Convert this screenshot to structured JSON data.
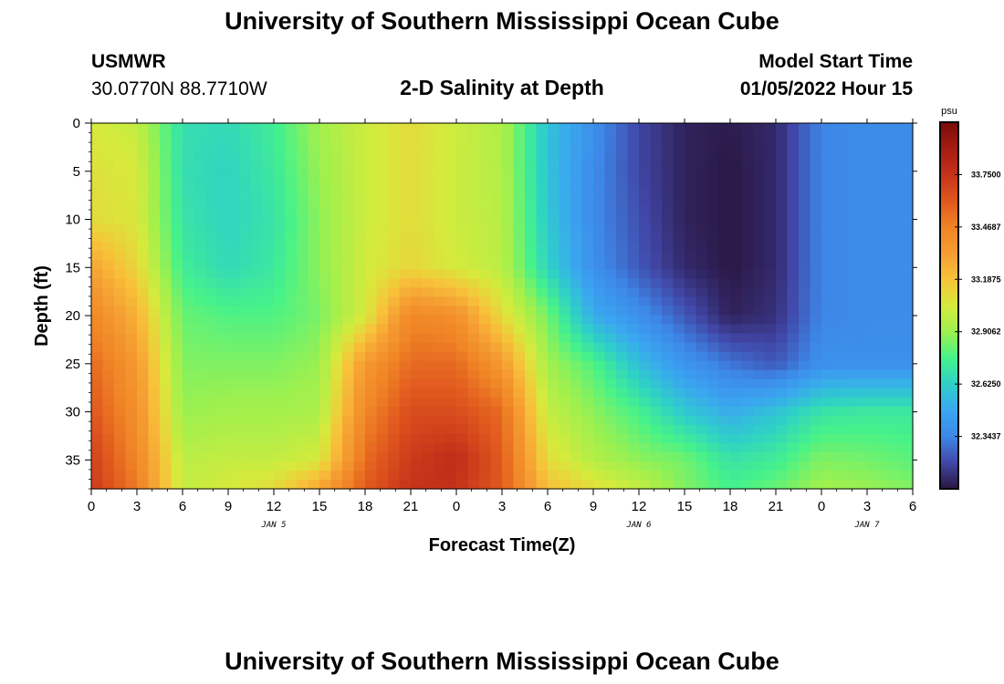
{
  "header": {
    "title": "University of Southern Mississippi Ocean Cube",
    "station": "USMWR",
    "coords": "30.0770N  88.7710W",
    "subtitle": "2-D Salinity at Depth",
    "model_label": "Model Start Time",
    "model_time": "01/05/2022 Hour 15"
  },
  "footer": {
    "title": "University of Southern Mississippi Ocean Cube"
  },
  "chart_data": {
    "type": "heatmap",
    "title": "2-D Salinity at Depth",
    "xlabel": "Forecast Time(Z)",
    "ylabel": "Depth (ft)",
    "x_hours": [
      0,
      3,
      6,
      9,
      12,
      15,
      18,
      21,
      24,
      27,
      30,
      33,
      36,
      39,
      42,
      45,
      48,
      51,
      54
    ],
    "x_tick_labels": [
      "0",
      "3",
      "6",
      "9",
      "12",
      "15",
      "18",
      "21",
      "0",
      "3",
      "6",
      "9",
      "12",
      "15",
      "18",
      "21",
      "0",
      "3",
      "6"
    ],
    "date_labels": [
      {
        "hour": 12,
        "label": "JAN 5"
      },
      {
        "hour": 36,
        "label": "JAN 6"
      },
      {
        "hour": 51,
        "label": "JAN 7"
      }
    ],
    "ylim": [
      0,
      38
    ],
    "y_ticks": [
      0,
      5,
      10,
      15,
      20,
      25,
      30,
      35
    ],
    "colorbar": {
      "unit": "psu",
      "range": [
        32.0625,
        34.0313
      ],
      "ticks": [
        "33.7500",
        "33.4687",
        "33.1875",
        "32.9062",
        "32.6250",
        "32.3437"
      ],
      "colors": [
        "#2a1540",
        "#4147a8",
        "#3d88e8",
        "#3aa7f0",
        "#2ed0c8",
        "#46f28a",
        "#9ef04e",
        "#d6ea3c",
        "#f8c23a",
        "#f59d32",
        "#f08426",
        "#e0571e",
        "#c5321a",
        "#a41c12",
        "#7a0c0c"
      ]
    },
    "z_depths": [
      0,
      5,
      10,
      15,
      20,
      25,
      30,
      35,
      38
    ],
    "z_salinity_psu": [
      [
        33.05,
        33.0,
        32.68,
        32.66,
        32.74,
        32.92,
        33.02,
        33.1,
        33.02,
        32.95,
        32.58,
        32.38,
        32.2,
        32.1,
        32.08,
        32.12,
        32.34,
        32.36,
        32.36
      ],
      [
        33.08,
        33.05,
        32.68,
        32.64,
        32.72,
        32.9,
        33.02,
        33.1,
        33.02,
        32.96,
        32.58,
        32.36,
        32.2,
        32.1,
        32.07,
        32.12,
        32.34,
        32.36,
        32.36
      ],
      [
        33.1,
        33.06,
        32.7,
        32.64,
        32.7,
        32.88,
        33.02,
        33.1,
        33.02,
        32.97,
        32.6,
        32.36,
        32.22,
        32.1,
        32.07,
        32.12,
        32.34,
        32.36,
        32.36
      ],
      [
        33.3,
        33.12,
        32.74,
        32.66,
        32.72,
        32.88,
        33.03,
        33.12,
        33.04,
        32.98,
        32.64,
        32.38,
        32.24,
        32.12,
        32.07,
        32.12,
        32.34,
        32.36,
        32.36
      ],
      [
        33.45,
        33.25,
        32.82,
        32.78,
        32.78,
        32.85,
        33.05,
        33.45,
        33.4,
        33.1,
        32.84,
        32.5,
        32.38,
        32.24,
        32.1,
        32.14,
        32.34,
        32.36,
        32.36
      ],
      [
        33.55,
        33.35,
        32.86,
        32.86,
        32.86,
        32.9,
        33.35,
        33.55,
        33.55,
        33.35,
        32.92,
        32.78,
        32.56,
        32.4,
        32.3,
        32.24,
        32.38,
        32.38,
        32.38
      ],
      [
        33.62,
        33.4,
        32.9,
        32.92,
        32.92,
        32.94,
        33.45,
        33.65,
        33.65,
        33.55,
        33.0,
        32.88,
        32.76,
        32.6,
        32.5,
        32.58,
        32.7,
        32.72,
        32.72
      ],
      [
        33.7,
        33.45,
        32.98,
        33.0,
        33.0,
        33.05,
        33.55,
        33.72,
        33.78,
        33.6,
        33.1,
        32.96,
        32.88,
        32.84,
        32.7,
        32.74,
        32.86,
        32.84,
        32.8
      ],
      [
        33.72,
        33.5,
        33.0,
        33.05,
        33.1,
        33.3,
        33.6,
        33.75,
        33.75,
        33.6,
        33.2,
        33.1,
        33.0,
        32.86,
        32.76,
        32.82,
        32.92,
        32.9,
        32.86
      ]
    ]
  }
}
